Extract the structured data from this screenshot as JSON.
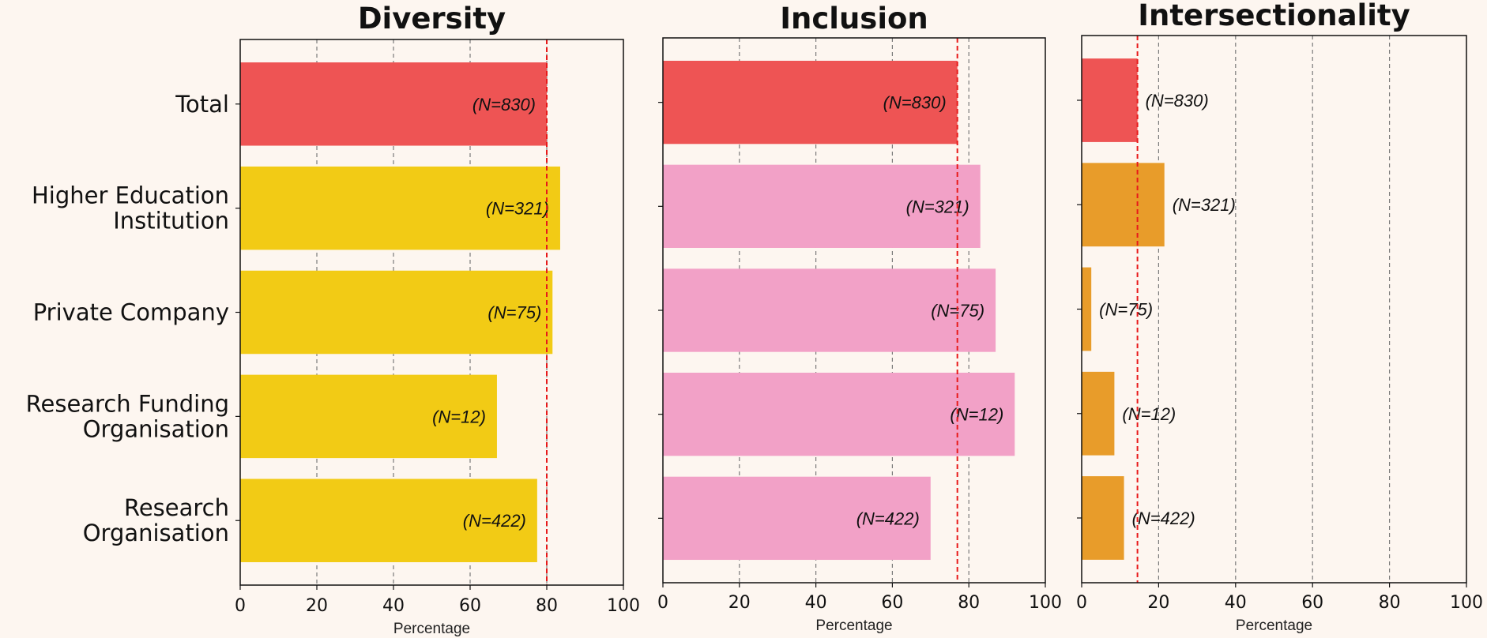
{
  "chart_data": [
    {
      "type": "bar",
      "orientation": "horizontal",
      "title": "Diversity",
      "xlabel": "Percentage",
      "xlim": [
        0,
        100
      ],
      "xticks": [
        "0",
        "20",
        "40",
        "60",
        "80",
        "100"
      ],
      "grid": "vertical dashed",
      "categories": [
        "Total",
        "Higher Education\nInstitution",
        "Private Company",
        "Research Funding\nOrganisation",
        "Research\nOrganisation"
      ],
      "values": [
        80,
        83.5,
        81.5,
        67,
        77.5
      ],
      "labels": [
        "(N=830)",
        "(N=321)",
        "(N=75)",
        "(N=12)",
        "(N=422)"
      ],
      "colors": [
        "#ee5454",
        "#f2cb15",
        "#f2cb15",
        "#f2cb15",
        "#f2cb15"
      ],
      "reference_line": 80,
      "reference_color": "#e8191a"
    },
    {
      "type": "bar",
      "orientation": "horizontal",
      "title": "Inclusion",
      "xlabel": "Percentage",
      "xlim": [
        0,
        100
      ],
      "xticks": [
        "0",
        "20",
        "40",
        "60",
        "80",
        "100"
      ],
      "grid": "vertical dashed",
      "categories": [
        "Total",
        "Higher Education\nInstitution",
        "Private Company",
        "Research Funding\nOrganisation",
        "Research\nOrganisation"
      ],
      "values": [
        77,
        83,
        87,
        92,
        70
      ],
      "labels": [
        "(N=830)",
        "(N=321)",
        "(N=75)",
        "(N=12)",
        "(N=422)"
      ],
      "colors": [
        "#ee5454",
        "#f2a1c7",
        "#f2a1c7",
        "#f2a1c7",
        "#f2a1c7"
      ],
      "reference_line": 77,
      "reference_color": "#e8191a"
    },
    {
      "type": "bar",
      "orientation": "horizontal",
      "title": "Intersectionality",
      "xlabel": "Percentage",
      "xlim": [
        0,
        100
      ],
      "xticks": [
        "0",
        "20",
        "40",
        "60",
        "80",
        "100"
      ],
      "grid": "vertical dashed",
      "categories": [
        "Total",
        "Higher Education\nInstitution",
        "Private Company",
        "Research Funding\nOrganisation",
        "Research\nOrganisation"
      ],
      "values": [
        14.5,
        21.5,
        2.5,
        8.5,
        11
      ],
      "labels": [
        "(N=830)",
        "(N=321)",
        "(N=75)",
        "(N=12)",
        "(N=422)"
      ],
      "colors": [
        "#ee5454",
        "#e89c2a",
        "#e89c2a",
        "#e89c2a",
        "#e89c2a"
      ],
      "reference_line": 14.5,
      "reference_color": "#e8191a"
    }
  ]
}
